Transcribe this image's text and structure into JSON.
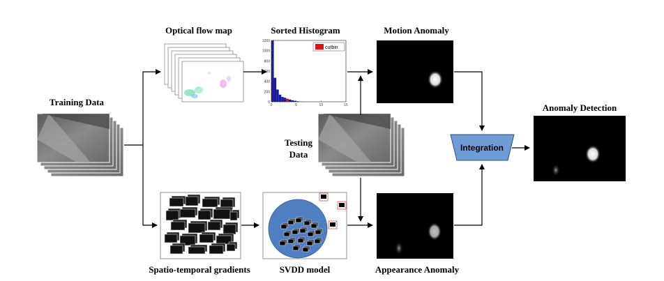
{
  "labels": {
    "training_data": "Training Data",
    "optical_flow_map": "Optical flow map",
    "sorted_histogram": "Sorted Histogram",
    "motion_anomaly": "Motion Anomaly",
    "testing_data_line1": "Testing",
    "testing_data_line2": "Data",
    "integration": "Integration",
    "anomaly_detection": "Anomaly Detection",
    "spatio_temporal_gradients": "Spatio-temporal gradients",
    "svdd_model": "SVDD model",
    "appearance_anomaly": "Appearance Anomaly"
  },
  "colors": {
    "histogram_bars": "#1a1a9e",
    "cutbin": "#e01010",
    "svdd_sphere": "#4f7fc0",
    "integration_box": "#6f9bd6",
    "outlier_box": "#e05050"
  },
  "chart_data": {
    "type": "bar",
    "title": "",
    "legend": [
      "cutbin"
    ],
    "xticks": [
      "0",
      "5",
      "10",
      "15"
    ],
    "yticks": [
      "0",
      "200",
      "400",
      "600",
      "800",
      "1000",
      "1200"
    ],
    "xlim": [
      0,
      15
    ],
    "ylim": [
      0,
      1200
    ],
    "bin_width": 0.5,
    "values": [
      1200,
      470,
      240,
      140,
      95,
      80,
      60,
      45,
      30,
      20,
      10,
      5,
      2
    ],
    "cut_bin_index": 6,
    "legend_position": "top-right"
  }
}
